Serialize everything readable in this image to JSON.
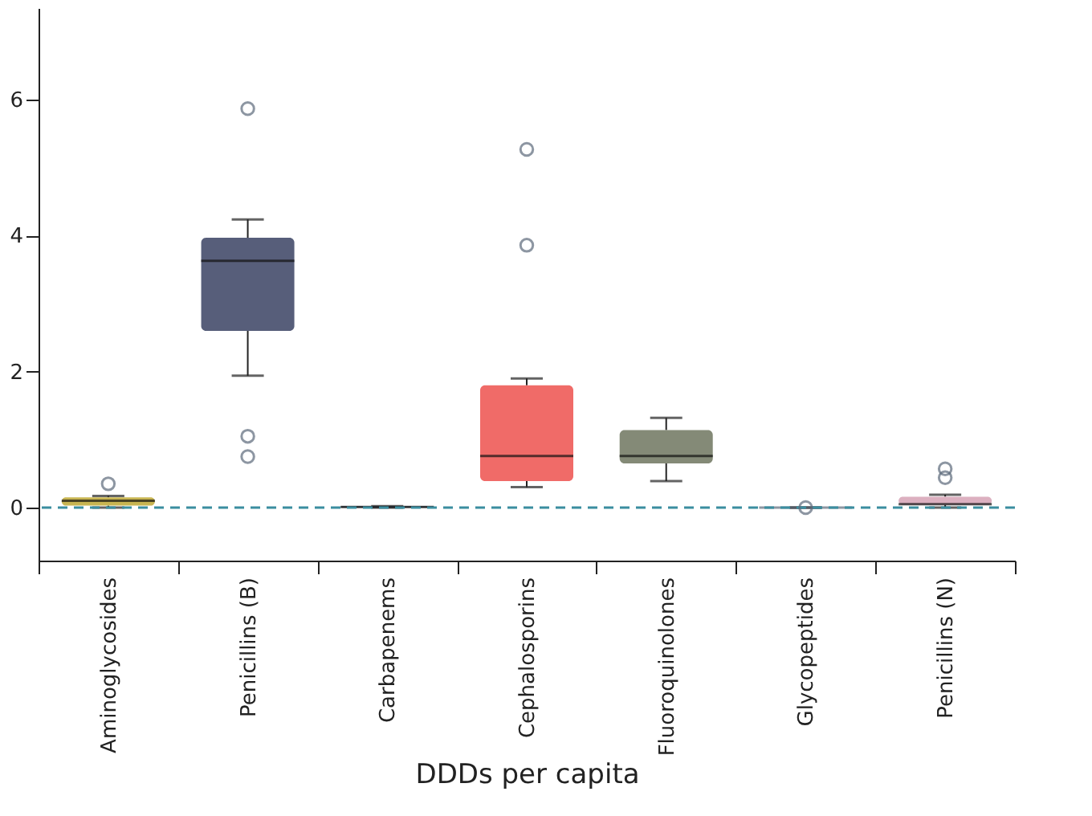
{
  "chart_data": {
    "type": "box",
    "xlabel": "DDDs per capita",
    "categories": [
      "Aminoglycosides",
      "Penicillins (B)",
      "Carbapenems",
      "Cephalosporins",
      "Fluoroquinolones",
      "Glycopeptides",
      "Penicillins (N)"
    ],
    "colors": [
      "#c8b552",
      "#575e7a",
      "#4f6272",
      "#f06b68",
      "#848a77",
      "#5e6b7a",
      "#dcb0c0"
    ],
    "boxes": [
      {
        "low": 0,
        "q1": 0.03,
        "median": 0.1,
        "q3": 0.15,
        "high": 0.17,
        "outliers": [
          0.35
        ]
      },
      {
        "low": 1.94,
        "q1": 2.6,
        "median": 3.63,
        "q3": 3.97,
        "high": 4.24,
        "outliers": [
          5.87,
          1.05,
          0.75
        ]
      },
      {
        "low": 0,
        "q1": 0,
        "median": 0.01,
        "q3": 0.02,
        "high": 0.02
      },
      {
        "low": 0.3,
        "q1": 0.39,
        "median": 0.76,
        "q3": 1.8,
        "high": 1.9,
        "outliers": [
          5.27,
          3.86
        ]
      },
      {
        "low": 0.39,
        "q1": 0.65,
        "median": 0.76,
        "q3": 1.14,
        "high": 1.32
      },
      {
        "low": 0,
        "q1": 0,
        "median": 0,
        "q3": 0,
        "high": 0,
        "outliers": [
          0
        ]
      },
      {
        "low": 0,
        "q1": 0.04,
        "median": 0.05,
        "q3": 0.16,
        "high": 0.19,
        "outliers": [
          0.57,
          0.44
        ]
      }
    ],
    "ylim": [
      -0.78,
      7.35
    ],
    "yticks": [
      0,
      2,
      4,
      6
    ],
    "ref_lines": [
      {
        "axis": "y",
        "value": 0,
        "color": "#3b8ea0",
        "line_style": "dashed"
      }
    ],
    "grid": false
  }
}
